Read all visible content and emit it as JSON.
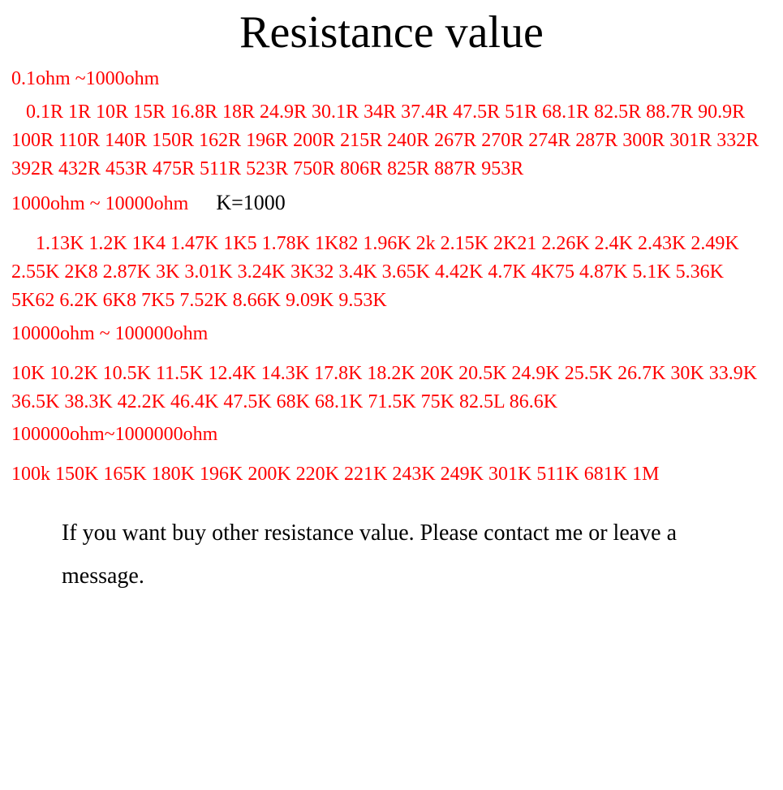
{
  "title": "Resistance value",
  "section1": {
    "header": "0.1ohm ~1000ohm",
    "values": "0.1R 1R 10R 15R 16.8R 18R 24.9R 30.1R  34R 37.4R  47.5R 51R  68.1R 82.5R 88.7R 90.9R 100R 110R  140R   150R 162R 196R   200R 215R 240R   267R  270R 274R 287R 300R  301R 332R 392R 432R 453R  475R 511R 523R  750R  806R  825R 887R 953R"
  },
  "section2": {
    "header": "1000ohm ~ 10000ohm",
    "note": "K=1000",
    "values": "1.13K    1.2K  1K4 1.47K  1K5 1.78K  1K82 1.96K   2k 2.15K  2K21 2.26K 2.4K 2.43K 2.49K 2.55K 2K8 2.87K 3K 3.01K 3.24K  3K32  3.4K 3.65K 4.42K 4.7K 4K75  4.87K 5.1K 5.36K  5K62 6.2K  6K8  7K5 7.52K 8.66K 9.09K 9.53K"
  },
  "section3": {
    "header": "10000ohm ~ 100000ohm",
    "values": "10K  10.2K 10.5K 11.5K 12.4K 14.3K 17.8K 18.2K  20K 20.5K 24.9K  25.5K  26.7K  30K 33.9K 36.5K 38.3K  42.2K 46.4K  47.5K   68K 68.1K 71.5K 75K 82.5L 86.6K"
  },
  "section4": {
    "header": "100000ohm~1000000ohm",
    "values": "100k  150K 165K 180K 196K 200K  220K 221K 243K 249K 301K   511K 681K  1M"
  },
  "footer": "If you want buy other resistance value. Please contact me or leave a message.",
  "colors": {
    "text_red": "#ff0000",
    "text_black": "#000000",
    "background": "#ffffff"
  },
  "typography": {
    "title_fontsize": 56,
    "body_fontsize": 24,
    "footer_fontsize": 28,
    "font_family": "Times New Roman"
  }
}
